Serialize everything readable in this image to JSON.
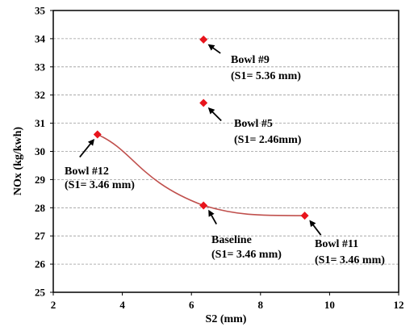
{
  "chart_data": {
    "type": "scatter",
    "title": "",
    "xlabel": "S2 (mm)",
    "ylabel": "NOx  (kg/kwh)",
    "xlim": [
      2,
      12
    ],
    "ylim": [
      25,
      35
    ],
    "xticks": [
      2,
      4,
      6,
      8,
      10,
      12
    ],
    "yticks": [
      25,
      26,
      27,
      28,
      29,
      30,
      31,
      32,
      33,
      34,
      35
    ],
    "grid": "horizontal dashed",
    "marker": "diamond",
    "marker_color": "#e8141c",
    "curve_color": "#c0504d",
    "points": [
      {
        "label": "Bowl #9",
        "x": 6.35,
        "y": 33.97,
        "line1": "Bowl  #9",
        "line2": "(S1= 5.36 mm)"
      },
      {
        "label": "Bowl #5",
        "x": 6.35,
        "y": 31.72,
        "line1": "Bowl #5",
        "line2": "(S1= 2.46mm)"
      },
      {
        "label": "Bowl #12",
        "x": 3.28,
        "y": 30.6,
        "line1": "Bowl  #12",
        "line2": "(S1= 3.46 mm)"
      },
      {
        "label": "Baseline",
        "x": 6.35,
        "y": 28.08,
        "line1": "Baseline",
        "line2": "(S1= 3.46 mm)"
      },
      {
        "label": "Bowl #11",
        "x": 9.28,
        "y": 27.72,
        "line1": "Bowl  #11",
        "line2": "(S1= 3.46 mm)"
      }
    ],
    "fit_curve_through": [
      "Bowl #12",
      "Baseline",
      "Bowl #11"
    ]
  }
}
